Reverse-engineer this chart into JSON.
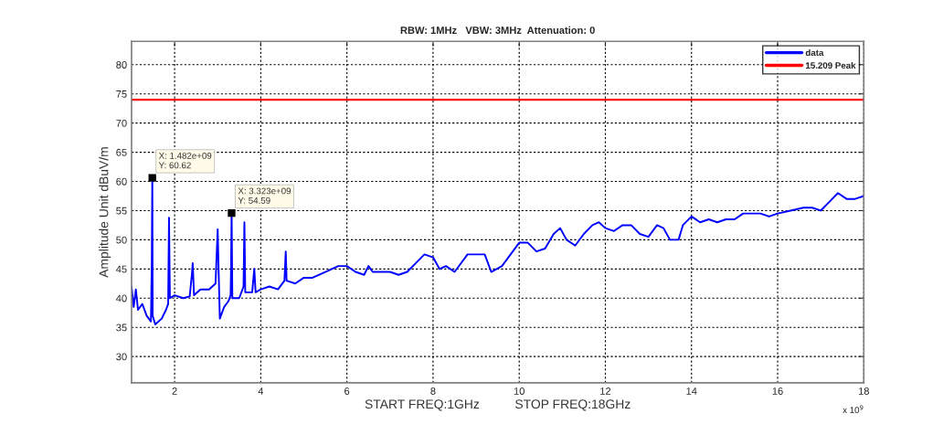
{
  "chart_data": {
    "type": "line",
    "title": "RBW: 1MHz   VBW: 3MHz  Attenuation: 0",
    "xlabel": "START FREQ:1GHz          STOP FREQ:18GHz",
    "ylabel": "Amplitude Unit dBuV/m",
    "xlim": [
      1,
      18
    ],
    "xticks": [
      2,
      4,
      6,
      8,
      10,
      12,
      14,
      16,
      18
    ],
    "ylim": [
      25.5,
      84
    ],
    "yticks": [
      30,
      35,
      40,
      45,
      50,
      55,
      60,
      65,
      70,
      75,
      80
    ],
    "grid": true,
    "legend": "top right",
    "line_style": "solid",
    "marker": "none",
    "series": [
      {
        "name": "data",
        "color": "#0000ff",
        "x": [
          1.0,
          1.05,
          1.1,
          1.15,
          1.25,
          1.35,
          1.45,
          1.47,
          1.482,
          1.49,
          1.55,
          1.7,
          1.8,
          1.85,
          1.87,
          1.89,
          2.0,
          2.2,
          2.35,
          2.4,
          2.42,
          2.45,
          2.6,
          2.8,
          2.95,
          3.0,
          3.02,
          3.05,
          3.15,
          3.25,
          3.3,
          3.31,
          3.323,
          3.34,
          3.5,
          3.6,
          3.62,
          3.64,
          3.8,
          3.85,
          3.88,
          4.0,
          4.2,
          4.4,
          4.55,
          4.58,
          4.6,
          4.8,
          5.0,
          5.2,
          5.5,
          5.8,
          6.0,
          6.2,
          6.4,
          6.5,
          6.6,
          6.8,
          7.0,
          7.2,
          7.4,
          7.6,
          7.8,
          8.0,
          8.15,
          8.3,
          8.5,
          8.8,
          9.0,
          9.2,
          9.35,
          9.6,
          9.8,
          10.0,
          10.2,
          10.4,
          10.6,
          10.8,
          10.95,
          11.1,
          11.3,
          11.5,
          11.7,
          11.85,
          12.0,
          12.2,
          12.4,
          12.6,
          12.8,
          13.0,
          13.2,
          13.35,
          13.5,
          13.7,
          13.8,
          14.0,
          14.2,
          14.4,
          14.6,
          14.8,
          15.0,
          15.2,
          15.4,
          15.6,
          15.8,
          16.0,
          16.3,
          16.6,
          16.8,
          17.0,
          17.2,
          17.4,
          17.6,
          17.8,
          18.0
        ],
        "values": [
          42,
          38.5,
          41.5,
          38,
          39,
          37,
          36,
          46,
          60.62,
          37,
          35.5,
          36.5,
          38,
          39,
          53.8,
          40,
          40.5,
          40,
          40.3,
          44,
          46,
          40.5,
          41.5,
          41.5,
          42.5,
          51.8,
          45,
          36.5,
          38.5,
          39.5,
          40.5,
          45,
          54.59,
          40,
          40,
          42,
          53,
          41,
          41,
          45,
          41,
          41.5,
          42,
          41.5,
          43,
          48,
          43,
          42.5,
          43.5,
          43.5,
          44.5,
          45.5,
          45.5,
          44.5,
          44,
          45.5,
          44.5,
          44.5,
          44.5,
          44,
          44.5,
          46,
          47.5,
          47,
          45,
          45.5,
          44.5,
          47.5,
          47.5,
          47.5,
          44.5,
          45.5,
          47.5,
          49.5,
          49.5,
          48,
          48.5,
          51,
          52,
          50,
          49,
          51,
          52.5,
          53,
          52,
          51.5,
          52.5,
          52.5,
          51,
          50.5,
          52.5,
          52,
          50,
          50,
          52.5,
          54,
          53,
          53.5,
          53,
          53.5,
          53.5,
          54.5,
          54.5,
          54.5,
          54,
          54.5,
          55,
          55.5,
          55.5,
          55,
          56.5,
          58,
          57,
          57,
          57.5
        ]
      },
      {
        "name": "15.209 Peak",
        "color": "#ff0000",
        "x": [
          1,
          18
        ],
        "values": [
          74,
          74
        ]
      }
    ],
    "annotations": [
      {
        "text": "X: 1.482e+09\nY: 60.62",
        "x": 1.482,
        "y": 60.62
      },
      {
        "text": "X: 3.323e+09\nY: 54.59",
        "x": 3.323,
        "y": 54.59
      },
      "x 10$^{9}$"
    ]
  }
}
